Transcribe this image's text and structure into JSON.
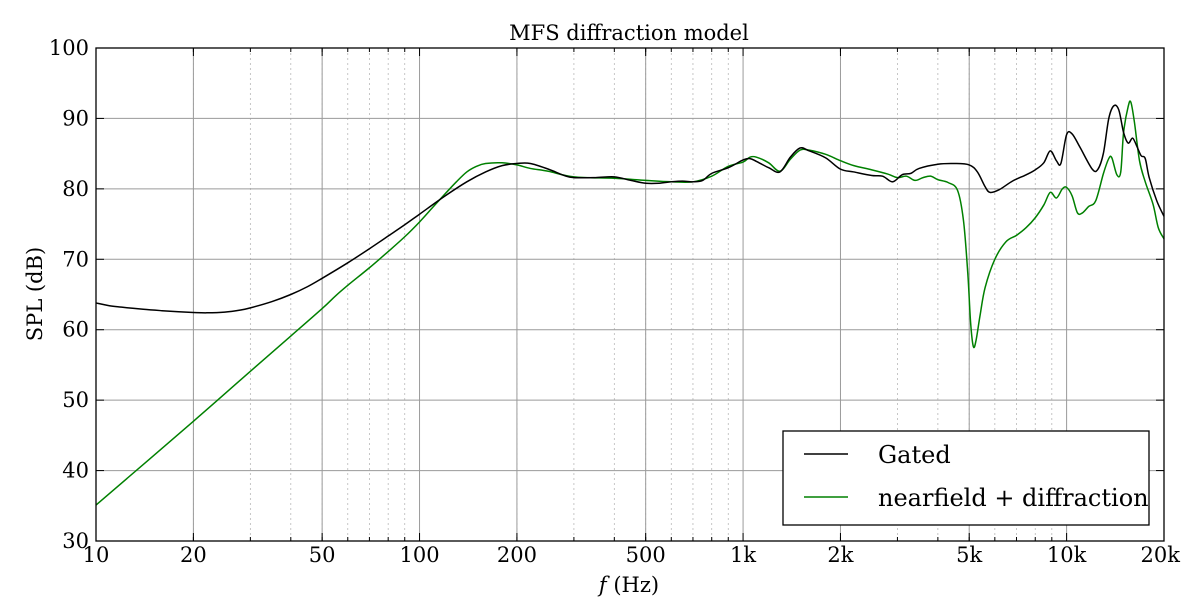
{
  "chart_data": {
    "type": "line",
    "title": "MFS diffraction model",
    "xlabel_italic": "f",
    "xlabel_rest": " (Hz)",
    "ylabel": "SPL (dB)",
    "xscale": "log",
    "xlim": [
      10,
      20000
    ],
    "ylim": [
      30,
      100
    ],
    "grid": true,
    "legend_position": "lower-right",
    "x_ticks": [
      {
        "value": 10,
        "label": "10"
      },
      {
        "value": 20,
        "label": "20"
      },
      {
        "value": 50,
        "label": "50"
      },
      {
        "value": 100,
        "label": "100"
      },
      {
        "value": 200,
        "label": "200"
      },
      {
        "value": 500,
        "label": "500"
      },
      {
        "value": 1000,
        "label": "1k"
      },
      {
        "value": 2000,
        "label": "2k"
      },
      {
        "value": 5000,
        "label": "5k"
      },
      {
        "value": 10000,
        "label": "10k"
      },
      {
        "value": 20000,
        "label": "20k"
      }
    ],
    "y_ticks": [
      30,
      40,
      50,
      60,
      70,
      80,
      90,
      100
    ],
    "series": [
      {
        "name": "Gated",
        "color": "#000000",
        "points": [
          [
            10,
            63.8
          ],
          [
            11,
            63.4
          ],
          [
            12,
            63.2
          ],
          [
            14,
            62.9
          ],
          [
            16,
            62.7
          ],
          [
            18,
            62.55
          ],
          [
            20,
            62.45
          ],
          [
            22,
            62.4
          ],
          [
            25,
            62.5
          ],
          [
            28,
            62.8
          ],
          [
            30,
            63.1
          ],
          [
            35,
            64.0
          ],
          [
            40,
            65.0
          ],
          [
            45,
            66.1
          ],
          [
            50,
            67.3
          ],
          [
            60,
            69.5
          ],
          [
            70,
            71.5
          ],
          [
            80,
            73.3
          ],
          [
            90,
            74.9
          ],
          [
            100,
            76.4
          ],
          [
            120,
            79.0
          ],
          [
            140,
            81.0
          ],
          [
            160,
            82.4
          ],
          [
            180,
            83.3
          ],
          [
            200,
            83.6
          ],
          [
            220,
            83.6
          ],
          [
            250,
            82.8
          ],
          [
            280,
            81.9
          ],
          [
            300,
            81.6
          ],
          [
            350,
            81.6
          ],
          [
            400,
            81.7
          ],
          [
            450,
            81.2
          ],
          [
            500,
            80.8
          ],
          [
            550,
            80.8
          ],
          [
            600,
            81.0
          ],
          [
            650,
            81.1
          ],
          [
            700,
            81.0
          ],
          [
            750,
            81.2
          ],
          [
            800,
            82.2
          ],
          [
            900,
            83.0
          ],
          [
            1000,
            84.1
          ],
          [
            1050,
            84.3
          ],
          [
            1100,
            83.9
          ],
          [
            1200,
            83.0
          ],
          [
            1300,
            82.4
          ],
          [
            1400,
            84.5
          ],
          [
            1500,
            85.8
          ],
          [
            1600,
            85.4
          ],
          [
            1800,
            84.4
          ],
          [
            2000,
            82.8
          ],
          [
            2200,
            82.4
          ],
          [
            2500,
            81.9
          ],
          [
            2700,
            81.8
          ],
          [
            2900,
            81.0
          ],
          [
            3100,
            82.0
          ],
          [
            3300,
            82.2
          ],
          [
            3500,
            82.9
          ],
          [
            4000,
            83.5
          ],
          [
            4500,
            83.6
          ],
          [
            5000,
            83.4
          ],
          [
            5300,
            82.4
          ],
          [
            5600,
            80.3
          ],
          [
            5800,
            79.5
          ],
          [
            6200,
            79.9
          ],
          [
            6800,
            81.1
          ],
          [
            7500,
            82.0
          ],
          [
            8000,
            82.7
          ],
          [
            8500,
            83.7
          ],
          [
            8900,
            85.4
          ],
          [
            9300,
            84.0
          ],
          [
            9600,
            83.6
          ],
          [
            10000,
            87.7
          ],
          [
            10400,
            87.8
          ],
          [
            11000,
            85.9
          ],
          [
            12000,
            82.8
          ],
          [
            12500,
            82.8
          ],
          [
            13000,
            85.1
          ],
          [
            13500,
            90.0
          ],
          [
            14000,
            91.8
          ],
          [
            14500,
            91.2
          ],
          [
            15000,
            88.0
          ],
          [
            15500,
            86.5
          ],
          [
            16000,
            87.2
          ],
          [
            16500,
            86.0
          ],
          [
            17000,
            84.7
          ],
          [
            17500,
            84.3
          ],
          [
            18000,
            81.6
          ],
          [
            19000,
            78.3
          ],
          [
            20000,
            76.1
          ]
        ]
      },
      {
        "name": "nearfield + diffraction",
        "color": "#008000",
        "points": [
          [
            10,
            35.1
          ],
          [
            20,
            47.0
          ],
          [
            30,
            54.1
          ],
          [
            40,
            59.1
          ],
          [
            50,
            63.0
          ],
          [
            55,
            64.8
          ],
          [
            60,
            66.3
          ],
          [
            70,
            68.8
          ],
          [
            80,
            71.1
          ],
          [
            90,
            73.2
          ],
          [
            100,
            75.3
          ],
          [
            110,
            77.4
          ],
          [
            120,
            79.3
          ],
          [
            130,
            81.0
          ],
          [
            140,
            82.4
          ],
          [
            150,
            83.2
          ],
          [
            160,
            83.6
          ],
          [
            180,
            83.7
          ],
          [
            200,
            83.4
          ],
          [
            220,
            82.9
          ],
          [
            250,
            82.5
          ],
          [
            300,
            81.7
          ],
          [
            400,
            81.5
          ],
          [
            500,
            81.2
          ],
          [
            600,
            81.0
          ],
          [
            700,
            81.0
          ],
          [
            800,
            81.8
          ],
          [
            900,
            83.2
          ],
          [
            1000,
            83.8
          ],
          [
            1050,
            84.5
          ],
          [
            1100,
            84.5
          ],
          [
            1200,
            83.7
          ],
          [
            1300,
            82.5
          ],
          [
            1400,
            84.2
          ],
          [
            1500,
            85.5
          ],
          [
            1600,
            85.5
          ],
          [
            1800,
            84.9
          ],
          [
            2000,
            84.0
          ],
          [
            2200,
            83.3
          ],
          [
            2500,
            82.7
          ],
          [
            2800,
            82.1
          ],
          [
            3000,
            81.6
          ],
          [
            3200,
            81.8
          ],
          [
            3400,
            81.2
          ],
          [
            3600,
            81.6
          ],
          [
            3800,
            81.8
          ],
          [
            4000,
            81.3
          ],
          [
            4300,
            80.9
          ],
          [
            4600,
            79.8
          ],
          [
            4800,
            75.5
          ],
          [
            4950,
            68.0
          ],
          [
            5050,
            61.0
          ],
          [
            5150,
            57.6
          ],
          [
            5250,
            58.5
          ],
          [
            5400,
            62.0
          ],
          [
            5600,
            66.0
          ],
          [
            6000,
            70.0
          ],
          [
            6500,
            72.5
          ],
          [
            7000,
            73.4
          ],
          [
            7500,
            74.5
          ],
          [
            8000,
            75.9
          ],
          [
            8500,
            77.7
          ],
          [
            8900,
            79.5
          ],
          [
            9300,
            78.7
          ],
          [
            9700,
            80.0
          ],
          [
            10000,
            80.2
          ],
          [
            10400,
            79.0
          ],
          [
            10800,
            76.6
          ],
          [
            11200,
            76.6
          ],
          [
            11700,
            77.5
          ],
          [
            12300,
            78.3
          ],
          [
            13000,
            82.2
          ],
          [
            13500,
            84.3
          ],
          [
            13800,
            84.4
          ],
          [
            14300,
            82.0
          ],
          [
            14700,
            82.4
          ],
          [
            15000,
            88.0
          ],
          [
            15500,
            91.7
          ],
          [
            15800,
            92.3
          ],
          [
            16200,
            89.5
          ],
          [
            16800,
            84.0
          ],
          [
            17500,
            81.0
          ],
          [
            18500,
            77.8
          ],
          [
            19200,
            74.5
          ],
          [
            20000,
            72.9
          ]
        ]
      }
    ]
  }
}
